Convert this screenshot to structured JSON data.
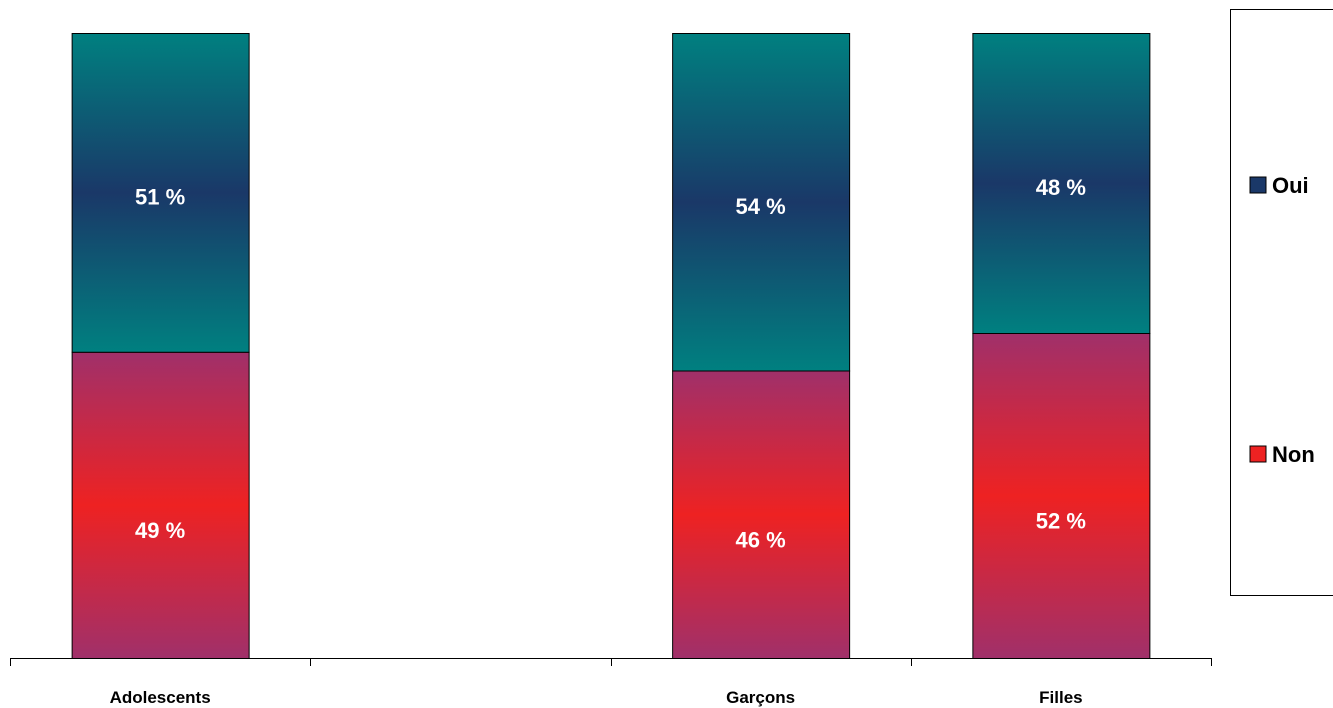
{
  "chart_data": {
    "type": "bar",
    "stacked": true,
    "percent_stacked": true,
    "categories": [
      "Adolescents",
      "",
      "Garçons",
      "Filles"
    ],
    "series": [
      {
        "name": "Non",
        "values": [
          49,
          null,
          46,
          52
        ],
        "labels": [
          "49  %",
          "",
          "46  %",
          "52  %"
        ],
        "color_mid": "#ee2222",
        "color_edge": "#a0306a"
      },
      {
        "name": "Oui",
        "values": [
          51,
          null,
          54,
          48
        ],
        "labels": [
          "51  %",
          "",
          "54  %",
          "48  %"
        ],
        "color_mid": "#1a3868",
        "color_edge": "#008080"
      }
    ],
    "ylim": [
      0,
      100
    ],
    "grid": false,
    "legend_position": "right",
    "legend": [
      "Oui",
      "Non"
    ]
  }
}
